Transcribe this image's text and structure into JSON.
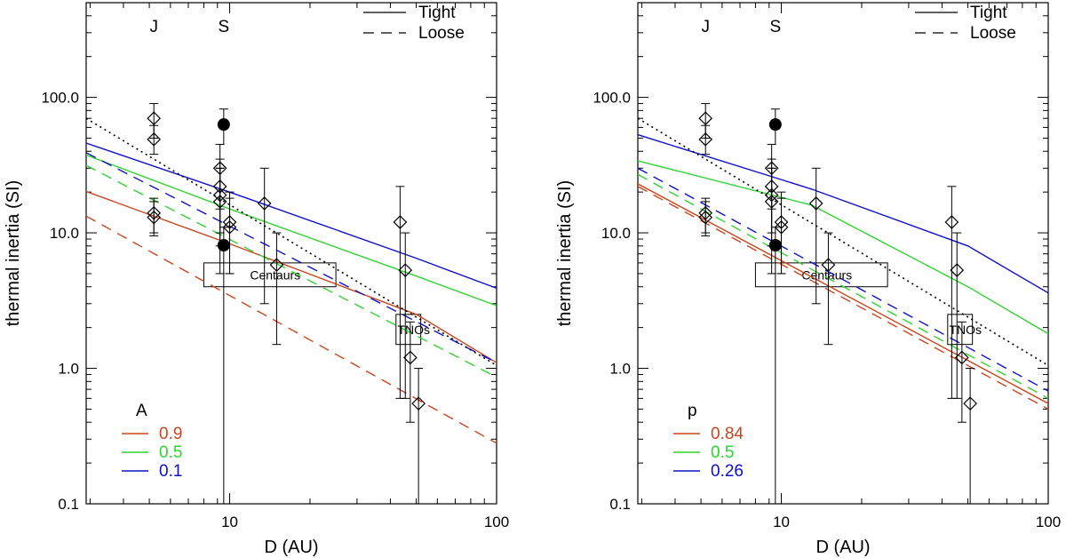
{
  "chart_data": [
    {
      "type": "line",
      "panel": "left",
      "xlabel": "D (AU)",
      "ylabel": "thermal inertia (SI)",
      "xscale": "log",
      "yscale": "log",
      "xlim": [
        2.9,
        100
      ],
      "ylim": [
        0.1,
        500
      ],
      "xticks": [
        {
          "value": 10,
          "label": "10"
        },
        {
          "value": 100,
          "label": "100"
        }
      ],
      "yticks": [
        {
          "value": 0.1,
          "label": "0.1"
        },
        {
          "value": 1,
          "label": "1.0"
        },
        {
          "value": 10,
          "label": "10.0"
        },
        {
          "value": 100,
          "label": "100.0"
        }
      ],
      "planet_markers": [
        {
          "label": "J",
          "x": 5.2
        },
        {
          "label": "S",
          "x": 9.5
        }
      ],
      "style_legend": [
        {
          "label": "Tight",
          "dash": "solid"
        },
        {
          "label": "Loose",
          "dash": "dashed"
        }
      ],
      "param_legend": {
        "title": "A",
        "entries": [
          {
            "label": "0.9",
            "color": "#c8461e"
          },
          {
            "label": "0.5",
            "color": "#32d232"
          },
          {
            "label": "0.1",
            "color": "#1010c8"
          }
        ]
      },
      "series": [
        {
          "name": "0.9 Tight",
          "color": "#c8461e",
          "dash": "solid",
          "x": [
            2.9,
            10,
            50,
            100
          ],
          "y": [
            20.2,
            8.3,
            2.5,
            1.1
          ]
        },
        {
          "name": "0.5 Tight",
          "color": "#32d232",
          "dash": "solid",
          "x": [
            2.9,
            10,
            50,
            100
          ],
          "y": [
            37.5,
            15,
            4.8,
            2.9
          ]
        },
        {
          "name": "0.1 Tight",
          "color": "#1010c8",
          "dash": "solid",
          "x": [
            2.9,
            10,
            50,
            100
          ],
          "y": [
            46,
            20,
            6.5,
            3.9
          ]
        },
        {
          "name": "0.9 Loose",
          "color": "#c8461e",
          "dash": "dashed",
          "x": [
            2.9,
            100
          ],
          "y": [
            13.3,
            0.28
          ]
        },
        {
          "name": "0.5 Loose",
          "color": "#32d232",
          "dash": "dashed",
          "x": [
            2.9,
            100
          ],
          "y": [
            31.5,
            0.86
          ]
        },
        {
          "name": "0.1 Loose",
          "color": "#1010c8",
          "dash": "dashed",
          "x": [
            2.9,
            100
          ],
          "y": [
            39,
            1.1
          ]
        },
        {
          "name": "reference",
          "color": "#000000",
          "dash": "dotted",
          "x": [
            2.9,
            100
          ],
          "y": [
            70,
            1.05
          ]
        }
      ],
      "regions": [
        {
          "label": "Centaurs",
          "x_range": [
            8,
            25
          ],
          "y_range": [
            4,
            6
          ]
        },
        {
          "label": "TNOs",
          "x_range": [
            42,
            52
          ],
          "y_range": [
            1.5,
            2.5
          ]
        }
      ],
      "diamonds": [
        {
          "x": 5.2,
          "y": 70,
          "ylow": 50,
          "yhigh": 90
        },
        {
          "x": 5.2,
          "y": 49,
          "ylow": 38,
          "yhigh": 62
        },
        {
          "x": 5.2,
          "y": 14,
          "ylow": 10,
          "yhigh": 18
        },
        {
          "x": 5.2,
          "y": 13,
          "ylow": 9.5,
          "yhigh": 17
        },
        {
          "x": 9.2,
          "y": 30,
          "ylow": 15,
          "yhigh": 45
        },
        {
          "x": 9.2,
          "y": 22,
          "ylow": 10,
          "yhigh": 35
        },
        {
          "x": 9.2,
          "y": 19,
          "ylow": 8,
          "yhigh": 30
        },
        {
          "x": 9.2,
          "y": 17,
          "ylow": 5,
          "yhigh": 30
        },
        {
          "x": 10,
          "y": 12,
          "ylow": 5,
          "yhigh": 20
        },
        {
          "x": 10,
          "y": 11,
          "ylow": 5,
          "yhigh": 18
        },
        {
          "x": 13.5,
          "y": 16.5,
          "ylow": 3,
          "yhigh": 30
        },
        {
          "x": 15,
          "y": 5.8,
          "ylow": 1.5,
          "yhigh": 10
        },
        {
          "x": 43.5,
          "y": 12,
          "ylow": 0.6,
          "yhigh": 22
        },
        {
          "x": 45.5,
          "y": 5.3,
          "ylow": 0.6,
          "yhigh": 10
        },
        {
          "x": 47.5,
          "y": 1.2,
          "ylow": 0.4,
          "yhigh": 2.2
        },
        {
          "x": 51,
          "y": 0.55,
          "ylow": 0.1,
          "yhigh": 1
        }
      ],
      "dots": [
        {
          "x": 9.5,
          "y": 63,
          "ylow": 45,
          "yhigh": 82
        },
        {
          "x": 9.5,
          "y": 8.1,
          "ylow": 0.1,
          "yhigh": 11
        }
      ]
    },
    {
      "type": "line",
      "panel": "right",
      "xlabel": "D (AU)",
      "ylabel": "thermal inertia (SI)",
      "xscale": "log",
      "yscale": "log",
      "xlim": [
        2.9,
        100
      ],
      "ylim": [
        0.1,
        500
      ],
      "xticks": [
        {
          "value": 10,
          "label": "10"
        },
        {
          "value": 100,
          "label": "100"
        }
      ],
      "yticks": [
        {
          "value": 0.1,
          "label": "0.1"
        },
        {
          "value": 1,
          "label": "1.0"
        },
        {
          "value": 10,
          "label": "10.0"
        },
        {
          "value": 100,
          "label": "100.0"
        }
      ],
      "planet_markers": [
        {
          "label": "J",
          "x": 5.2
        },
        {
          "label": "S",
          "x": 9.5
        }
      ],
      "style_legend": [
        {
          "label": "Tight",
          "dash": "solid"
        },
        {
          "label": "Loose",
          "dash": "dashed"
        }
      ],
      "param_legend": {
        "title": "p",
        "entries": [
          {
            "label": "0.84",
            "color": "#c8461e"
          },
          {
            "label": "0.5",
            "color": "#32d232"
          },
          {
            "label": "0.26",
            "color": "#1010c8"
          }
        ]
      },
      "series": [
        {
          "name": "0.84 Tight",
          "color": "#c8461e",
          "dash": "solid",
          "x": [
            2.9,
            100
          ],
          "y": [
            23,
            0.55
          ]
        },
        {
          "name": "0.5 Tight",
          "color": "#32d232",
          "dash": "solid",
          "x": [
            2.9,
            13,
            50,
            100
          ],
          "y": [
            34,
            16,
            4,
            1.8
          ]
        },
        {
          "name": "0.26 Tight",
          "color": "#1010c8",
          "dash": "solid",
          "x": [
            2.9,
            13,
            50,
            100
          ],
          "y": [
            53,
            21,
            8,
            3.6
          ]
        },
        {
          "name": "0.84 Loose",
          "color": "#c8461e",
          "dash": "dashed",
          "x": [
            2.9,
            100
          ],
          "y": [
            22,
            0.5
          ]
        },
        {
          "name": "0.5 Loose",
          "color": "#32d232",
          "dash": "dashed",
          "x": [
            2.9,
            100
          ],
          "y": [
            27,
            0.6
          ]
        },
        {
          "name": "0.26 Loose",
          "color": "#1010c8",
          "dash": "dashed",
          "x": [
            2.9,
            100
          ],
          "y": [
            30,
            0.68
          ]
        },
        {
          "name": "reference",
          "color": "#000000",
          "dash": "dotted",
          "x": [
            2.9,
            100
          ],
          "y": [
            70,
            1.05
          ]
        }
      ],
      "regions": [
        {
          "label": "Centaurs",
          "x_range": [
            8,
            25
          ],
          "y_range": [
            4,
            6
          ]
        },
        {
          "label": "TNOs",
          "x_range": [
            42,
            52
          ],
          "y_range": [
            1.5,
            2.5
          ]
        }
      ],
      "diamonds": [
        {
          "x": 5.2,
          "y": 70,
          "ylow": 50,
          "yhigh": 90
        },
        {
          "x": 5.2,
          "y": 49,
          "ylow": 38,
          "yhigh": 62
        },
        {
          "x": 5.2,
          "y": 14,
          "ylow": 10,
          "yhigh": 18
        },
        {
          "x": 5.2,
          "y": 13,
          "ylow": 9.5,
          "yhigh": 17
        },
        {
          "x": 9.2,
          "y": 30,
          "ylow": 15,
          "yhigh": 45
        },
        {
          "x": 9.2,
          "y": 22,
          "ylow": 10,
          "yhigh": 35
        },
        {
          "x": 9.2,
          "y": 19,
          "ylow": 8,
          "yhigh": 30
        },
        {
          "x": 9.2,
          "y": 17,
          "ylow": 5,
          "yhigh": 30
        },
        {
          "x": 10,
          "y": 12,
          "ylow": 5,
          "yhigh": 20
        },
        {
          "x": 10,
          "y": 11,
          "ylow": 5,
          "yhigh": 18
        },
        {
          "x": 13.5,
          "y": 16.5,
          "ylow": 3,
          "yhigh": 30
        },
        {
          "x": 15,
          "y": 5.8,
          "ylow": 1.5,
          "yhigh": 10
        },
        {
          "x": 43.5,
          "y": 12,
          "ylow": 0.6,
          "yhigh": 22
        },
        {
          "x": 45.5,
          "y": 5.3,
          "ylow": 0.6,
          "yhigh": 10
        },
        {
          "x": 47.5,
          "y": 1.2,
          "ylow": 0.4,
          "yhigh": 2.2
        },
        {
          "x": 51,
          "y": 0.55,
          "ylow": 0.1,
          "yhigh": 1
        }
      ],
      "dots": [
        {
          "x": 9.5,
          "y": 63,
          "ylow": 45,
          "yhigh": 82
        },
        {
          "x": 9.5,
          "y": 8.1,
          "ylow": 0.1,
          "yhigh": 11
        }
      ]
    }
  ]
}
